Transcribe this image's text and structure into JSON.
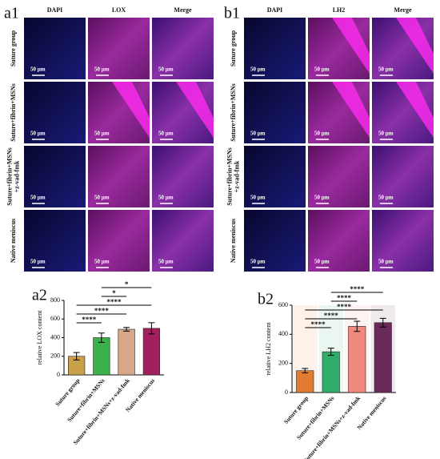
{
  "figure": [
    {
      "label": "a1",
      "columns": [
        "DAPI",
        "LOX",
        "Merge"
      ],
      "rows": [
        [
          "Suture group"
        ],
        [
          "Suture+fibrin+MSNs"
        ],
        [
          "Suture+fibrin+MSNs",
          "+z-vad-fmk"
        ],
        [
          "Native meniscus"
        ]
      ],
      "scale": "50 µm"
    },
    {
      "label": "b1",
      "columns": [
        "DAPI",
        "LH2",
        "Merge"
      ],
      "rows": [
        [
          "Suture group"
        ],
        [
          "Suture+fibrin+MSNs"
        ],
        [
          "Suture+fibrin+MSNs",
          "+z-vad-fmk"
        ],
        [
          "Native meniscus"
        ]
      ],
      "scale": "50 µm"
    }
  ],
  "chart_data": [
    {
      "type": "bar",
      "panel": "a2",
      "y_label": "relative LOX content",
      "categories": [
        "Suture group",
        "Suture+fibrin+MSNs",
        "Suture+fibrin+MSNs+z-vad-fmk",
        "Native meniscus"
      ],
      "values": [
        200,
        400,
        490,
        500
      ],
      "errors": [
        40,
        50,
        20,
        60
      ],
      "colors": [
        "#c9a04a",
        "#3cb04a",
        "#d8a88a",
        "#a3205e"
      ],
      "ylim": [
        0,
        800
      ],
      "yticks": [
        0,
        200,
        400,
        600,
        800
      ],
      "annotations": [
        {
          "text": "****",
          "pair": [
            0,
            1
          ]
        },
        {
          "text": "****",
          "pair": [
            0,
            2
          ]
        },
        {
          "text": "****",
          "pair": [
            0,
            3
          ]
        },
        {
          "text": "*",
          "pair": [
            1,
            2
          ]
        },
        {
          "text": "*",
          "pair": [
            1,
            3
          ]
        }
      ]
    },
    {
      "type": "bar",
      "panel": "b2",
      "y_label": "relative LH2 content",
      "categories": [
        "Suture group",
        "Suture+fibrin+MSNs",
        "Suture+fibrin+MSNs+z-vad-fmk",
        "Native meniscus"
      ],
      "values": [
        150,
        280,
        455,
        480
      ],
      "errors": [
        15,
        25,
        35,
        30
      ],
      "colors": [
        "#e07b30",
        "#2fae6a",
        "#f08a80",
        "#6a2a5a"
      ],
      "ylim": [
        0,
        600
      ],
      "yticks": [
        0,
        200,
        400,
        600
      ],
      "annotations": [
        {
          "text": "****",
          "pair": [
            0,
            1
          ]
        },
        {
          "text": "****",
          "pair": [
            0,
            2
          ]
        },
        {
          "text": "****",
          "pair": [
            0,
            3
          ]
        },
        {
          "text": "****",
          "pair": [
            1,
            2
          ]
        },
        {
          "text": "****",
          "pair": [
            1,
            3
          ]
        }
      ]
    }
  ]
}
